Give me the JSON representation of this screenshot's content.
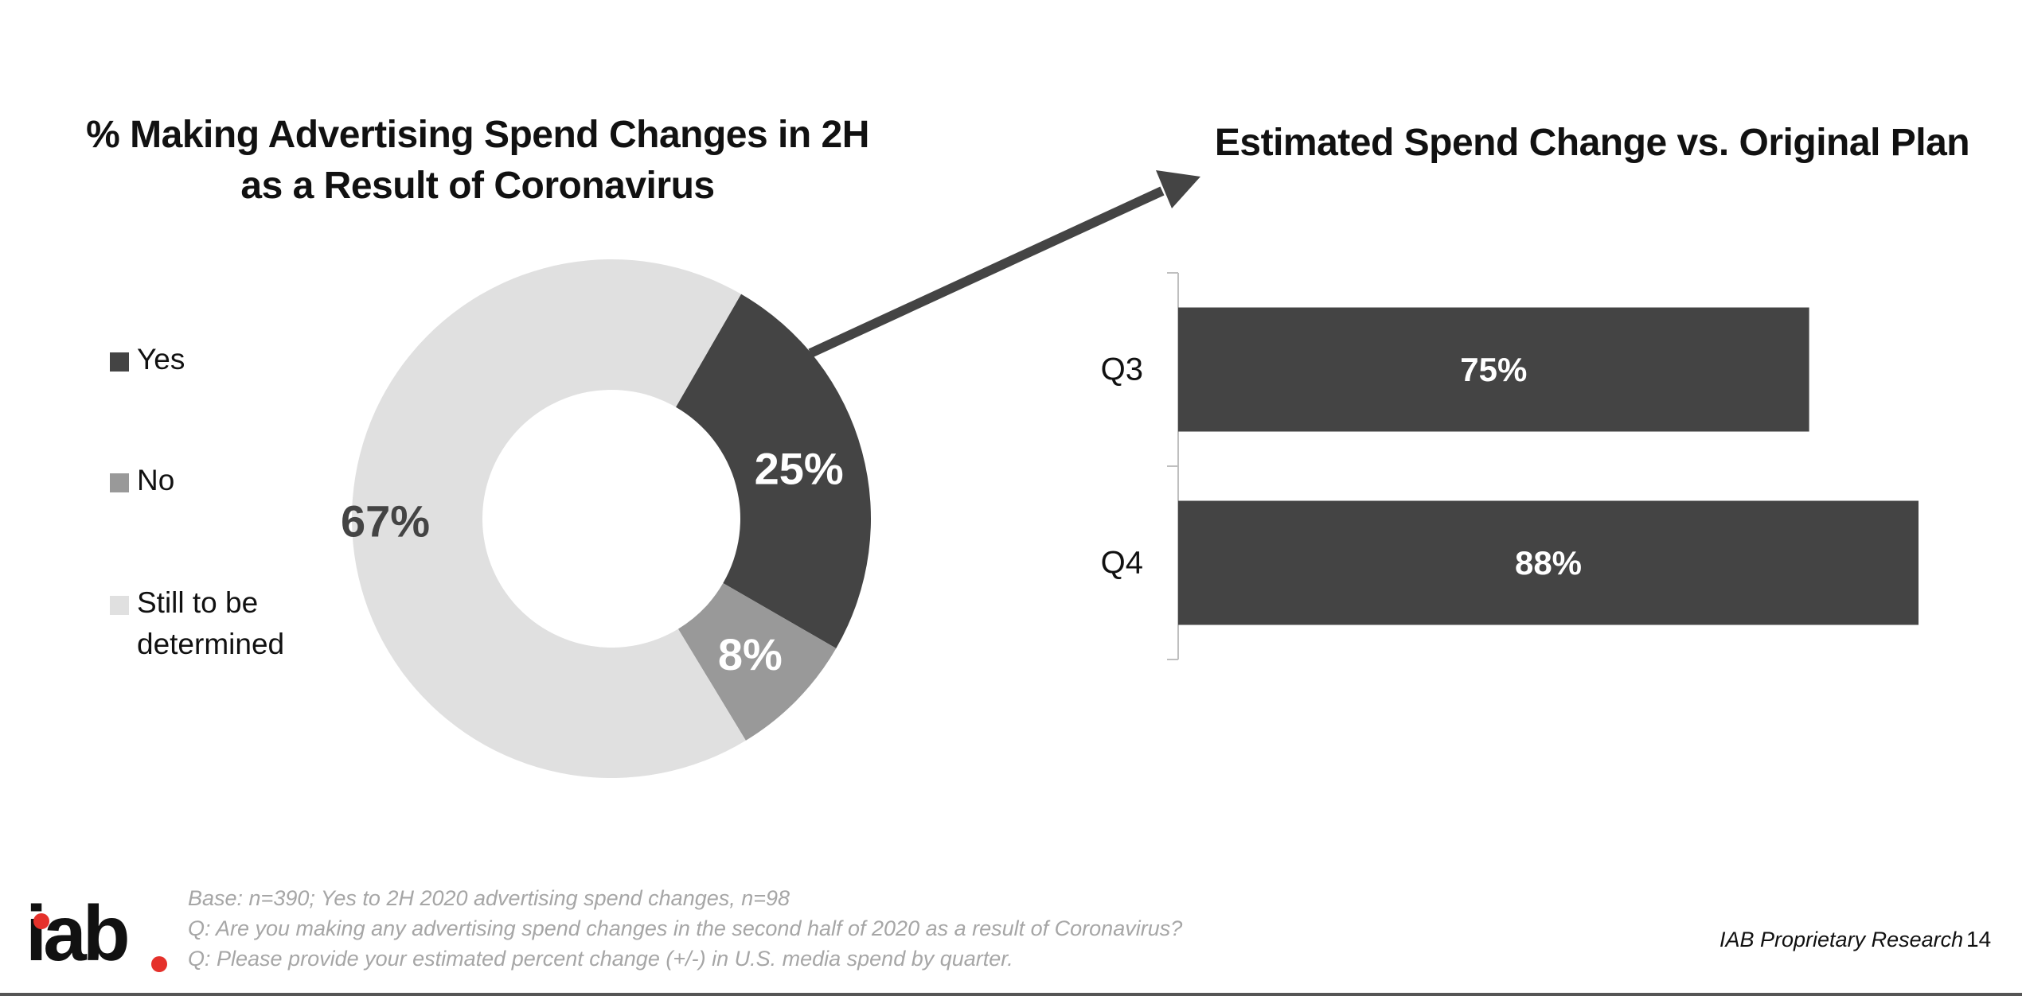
{
  "slide": {
    "title_left": "% Making Advertising Spend Changes in 2H as a Result of Coronavirus",
    "title_right": "Estimated Spend Change vs. Original Plan",
    "footnotes": [
      "Base: n=390; Yes to 2H 2020 advertising spend changes, n=98",
      "Q: Are you making any advertising spend changes in the second half of 2020 as a result of Coronavirus?",
      "Q: Please provide your estimated percent change (+/-) in U.S. media spend by quarter."
    ],
    "brand_text": "IAB Proprietary Research",
    "page_number": "14",
    "logo_text": "iab",
    "logo_accent_color": "#e5312b"
  },
  "chart_data": [
    {
      "type": "pie",
      "style": "donut",
      "legend_placement": "left",
      "categories": [
        "Yes",
        "No",
        "Still to be determined"
      ],
      "values": [
        25,
        8,
        67
      ],
      "labels": [
        "25%",
        "8%",
        "67%"
      ],
      "colors": [
        "#444444",
        "#999999",
        "#e0e0e0"
      ],
      "label_colors": [
        "#ffffff",
        "#ffffff",
        "#444444"
      ]
    },
    {
      "type": "bar",
      "orientation": "horizontal",
      "categories": [
        "Q3",
        "Q4"
      ],
      "values": [
        75,
        88
      ],
      "labels": [
        "75%",
        "88%"
      ],
      "color": "#444444",
      "label_color": "#ffffff",
      "xlim": [
        0,
        88
      ],
      "grid": false
    }
  ]
}
